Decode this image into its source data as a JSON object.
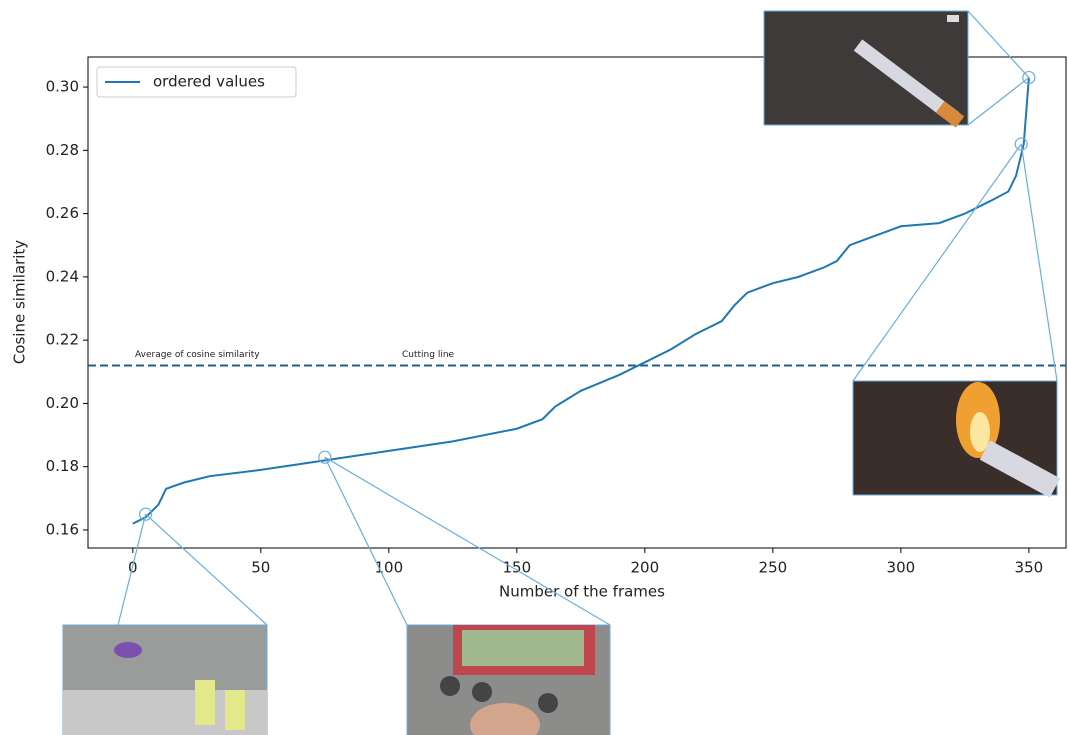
{
  "chart_data": {
    "type": "line",
    "x_label": "Number of the frames",
    "y_label": "Cosine similarity",
    "x": [
      0,
      5,
      10,
      13,
      20,
      30,
      50,
      75,
      100,
      125,
      150,
      160,
      165,
      175,
      190,
      200,
      210,
      220,
      230,
      235,
      240,
      250,
      260,
      270,
      275,
      280,
      290,
      300,
      315,
      325,
      335,
      342,
      345,
      348,
      350
    ],
    "series": [
      {
        "name": "ordered values",
        "color": "#1f77b4",
        "values": [
          0.162,
          0.164,
          0.168,
          0.173,
          0.175,
          0.177,
          0.179,
          0.182,
          0.185,
          0.188,
          0.192,
          0.195,
          0.199,
          0.204,
          0.209,
          0.213,
          0.217,
          0.222,
          0.226,
          0.231,
          0.235,
          0.238,
          0.24,
          0.243,
          0.245,
          0.25,
          0.253,
          0.256,
          0.257,
          0.26,
          0.264,
          0.267,
          0.272,
          0.282,
          0.303
        ]
      }
    ],
    "cutting_line": {
      "value": 0.212,
      "color": "#1f5f8b",
      "labels": [
        "Average of cosine similarity",
        "Cutting line"
      ]
    },
    "highlighted_points": {
      "x": [
        5,
        75,
        347,
        350
      ],
      "y": [
        0.165,
        0.183,
        0.282,
        0.303
      ]
    },
    "xlim": [
      -17.5,
      364.5
    ],
    "ylim": [
      0.1543,
      0.3095
    ],
    "xticks": [
      0,
      50,
      100,
      150,
      200,
      250,
      300,
      350
    ],
    "yticks": [
      0.16,
      0.18,
      {
        "value": 0.2,
        "label": "0.20"
      },
      0.22,
      0.24,
      0.26,
      0.28,
      {
        "value": 0.3,
        "label": "0.30"
      }
    ],
    "legend": "upper left"
  }
}
